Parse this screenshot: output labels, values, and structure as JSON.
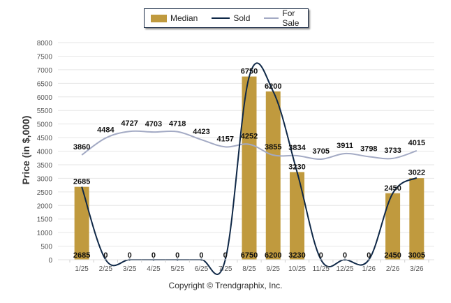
{
  "chart_data": {
    "type": "bar",
    "title": "",
    "xlabel": "",
    "ylabel": "Price (in $,000)",
    "ylim": [
      0,
      8000
    ],
    "ytick_step": 500,
    "yticks": [
      "0",
      "500",
      "1000",
      "1500",
      "2000",
      "2500",
      "3000",
      "3500",
      "4000",
      "4500",
      "5000",
      "5500",
      "6000",
      "6500",
      "7000",
      "7500",
      "8000"
    ],
    "grid": true,
    "legend_position": "top-center",
    "categories": [
      "1/25",
      "2/25",
      "3/25",
      "4/25",
      "5/25",
      "6/25",
      "7/25",
      "8/25",
      "9/25",
      "10/25",
      "11/25",
      "12/25",
      "1/26",
      "2/26",
      "3/26"
    ],
    "series": [
      {
        "name": "Median",
        "type": "bar",
        "color": "#c09a3e",
        "values": [
          2685,
          0,
          0,
          0,
          0,
          0,
          0,
          6750,
          6200,
          3230,
          0,
          0,
          0,
          2450,
          3005
        ]
      },
      {
        "name": "Sold",
        "type": "line",
        "color": "#0f2847",
        "values": [
          2685,
          0,
          0,
          0,
          0,
          0,
          0,
          6750,
          6200,
          3230,
          0,
          0,
          0,
          2450,
          3022
        ]
      },
      {
        "name": "For Sale",
        "type": "line",
        "color": "#a3aac4",
        "values": [
          3860,
          4484,
          4727,
          4703,
          4718,
          4423,
          4157,
          4252,
          3855,
          3834,
          3705,
          3911,
          3798,
          3733,
          4015
        ]
      }
    ]
  },
  "legend": {
    "items": [
      {
        "label": "Median"
      },
      {
        "label": "Sold"
      },
      {
        "label": "For Sale"
      }
    ]
  },
  "footer": {
    "copyright": "Copyright © Trendgraphix, Inc."
  }
}
